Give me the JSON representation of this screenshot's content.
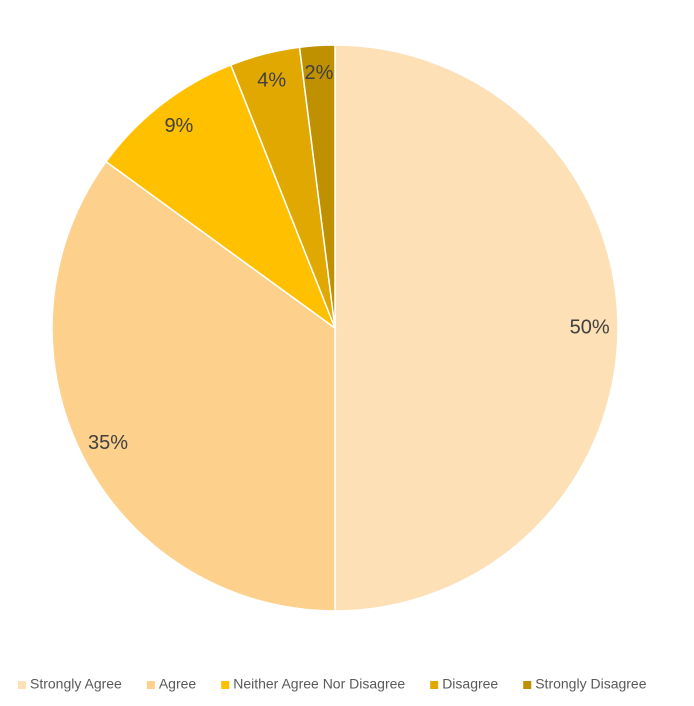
{
  "chart_data": {
    "type": "pie",
    "categories": [
      "Strongly Agree",
      "Agree",
      "Neither Agree Nor Disagree",
      "Disagree",
      "Strongly Disagree"
    ],
    "values": [
      50,
      35,
      9,
      4,
      2
    ],
    "value_labels": [
      "50%",
      "35%",
      "9%",
      "4%",
      "2%"
    ],
    "colors": [
      "#fde0b6",
      "#fdd18c",
      "#ffc000",
      "#e0a800",
      "#bf9000"
    ],
    "legend": "bottom"
  }
}
